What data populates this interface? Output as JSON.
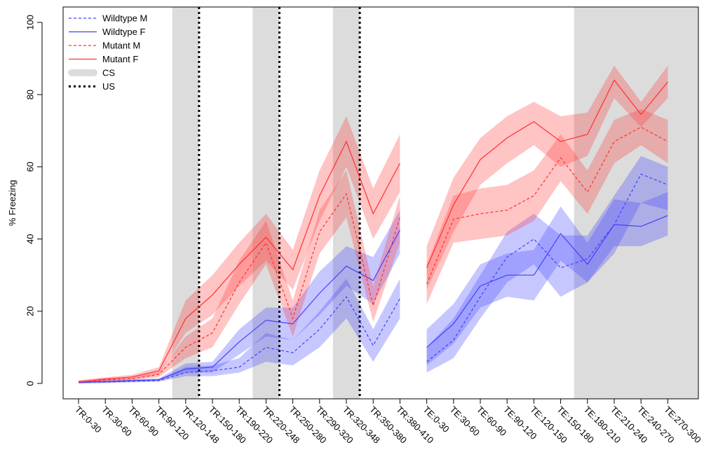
{
  "chart_data": {
    "type": "line",
    "ylabel": "% Freezing",
    "xlabel": "",
    "ylim": [
      0,
      100
    ],
    "yticks": [
      0,
      20,
      40,
      60,
      80,
      100
    ],
    "categories": [
      "TR:0-30",
      "TR:30-60",
      "TR:60-90",
      "TR:90-120",
      "TR:120-148",
      "TR:150-180",
      "TR:190-220",
      "TR:220-248",
      "TR:250-280",
      "TR:290-320",
      "TR:320-348",
      "TR:350-380",
      "TR:380-410",
      "TE:0-30",
      "TE:30-60",
      "TE:60-90",
      "TE:90-120",
      "TE:120-150",
      "TE:150-180",
      "TE:180-210",
      "TE:210-240",
      "TE:240-270",
      "TE:270-300"
    ],
    "cs_regions": [
      [
        4,
        4
      ],
      [
        7,
        7
      ],
      [
        10,
        10
      ],
      [
        19,
        22
      ]
    ],
    "us_markers": [
      4,
      7,
      10
    ],
    "series": [
      {
        "name": "Wildtype M",
        "color": "#4040ff",
        "dash": true,
        "values": [
          0.3,
          0.4,
          0.6,
          0.8,
          3,
          3.5,
          4.5,
          10,
          8.5,
          15,
          24,
          10.5,
          23.5,
          6,
          12,
          24,
          35,
          40,
          32,
          34.5,
          44,
          58,
          55
        ],
        "lower": [
          0,
          0.1,
          0.3,
          0.5,
          2,
          2,
          3,
          6,
          5,
          10,
          18,
          6,
          18,
          3,
          7,
          18,
          28,
          33,
          24,
          28,
          36,
          50,
          48
        ],
        "upper": [
          0.6,
          0.8,
          1,
          1.2,
          4.5,
          5,
          7,
          14,
          12,
          20,
          29,
          15,
          29,
          10,
          18,
          30,
          42,
          47,
          41,
          41,
          52,
          63,
          60
        ]
      },
      {
        "name": "Wildtype F",
        "color": "#4040ff",
        "dash": false,
        "values": [
          0.3,
          0.5,
          0.8,
          1,
          4,
          4.5,
          11.5,
          17.5,
          16.5,
          25,
          32.5,
          28.5,
          42.5,
          10,
          16.5,
          27,
          30,
          30,
          41.5,
          33,
          44,
          43.5,
          46.5
        ],
        "lower": [
          0,
          0.2,
          0.5,
          0.7,
          3,
          3,
          8,
          13,
          12,
          19,
          27,
          22,
          36,
          5,
          11,
          21,
          24,
          23,
          34,
          28,
          38,
          38,
          41
        ],
        "upper": [
          0.6,
          0.9,
          1.1,
          1.4,
          5.5,
          6,
          15,
          21,
          21,
          31,
          38,
          35,
          48,
          15,
          22,
          33,
          36,
          37,
          49,
          39,
          51,
          50,
          53
        ]
      },
      {
        "name": "Mutant M",
        "color": "#ff3030",
        "dash": true,
        "values": [
          0.4,
          1,
          1.3,
          2.5,
          10,
          14,
          28,
          39,
          18,
          42,
          52.5,
          21.5,
          46,
          27.5,
          45.5,
          47,
          48,
          52,
          62.5,
          53,
          67,
          71,
          67
        ],
        "lower": [
          0,
          0.6,
          0.9,
          1.8,
          7,
          10,
          22,
          33,
          13,
          36,
          46,
          17,
          39,
          22,
          39,
          40,
          41,
          45,
          56,
          47,
          61,
          66,
          61
        ],
        "upper": [
          0.8,
          1.5,
          1.8,
          3.2,
          13,
          18,
          34,
          45,
          23,
          48,
          59,
          27,
          52,
          33,
          52,
          54,
          55,
          59,
          69,
          59,
          73,
          76,
          73
        ]
      },
      {
        "name": "Mutant F",
        "color": "#ff3030",
        "dash": false,
        "values": [
          0.4,
          1.2,
          1.8,
          3.5,
          18,
          24.5,
          33,
          40.5,
          31.5,
          52,
          67,
          47,
          61,
          32,
          49.5,
          62,
          68,
          72.5,
          67,
          69,
          84,
          74.5,
          83.5
        ],
        "lower": [
          0,
          0.7,
          1.2,
          2.5,
          14,
          19,
          27,
          34,
          26,
          45,
          60,
          40,
          53,
          26,
          42,
          55,
          61,
          66,
          60,
          63,
          79,
          71,
          79
        ],
        "upper": [
          0.9,
          1.7,
          2.4,
          4.5,
          23,
          30,
          39,
          47,
          37,
          59,
          74,
          54,
          69,
          38,
          57,
          68,
          74,
          78,
          74,
          75,
          88,
          78,
          88
        ]
      }
    ],
    "legend": {
      "position": "top-left",
      "entries": [
        {
          "label": "Wildtype M",
          "kind": "line",
          "color": "#4040ff",
          "dash": true
        },
        {
          "label": "Wildtype F",
          "kind": "line",
          "color": "#4040ff",
          "dash": false
        },
        {
          "label": "Mutant M",
          "kind": "line",
          "color": "#ff3030",
          "dash": true
        },
        {
          "label": "Mutant F",
          "kind": "line",
          "color": "#ff3030",
          "dash": false
        },
        {
          "label": "CS",
          "kind": "band",
          "color": "#dcdcdc"
        },
        {
          "label": "US",
          "kind": "dotted",
          "color": "#000000"
        }
      ]
    },
    "grid": false,
    "gap_between": [
      12,
      13
    ],
    "colors": {
      "wildtype": "#4040ff",
      "mutant": "#ff3030",
      "cs": "#dcdcdc",
      "us": "#000000"
    }
  }
}
